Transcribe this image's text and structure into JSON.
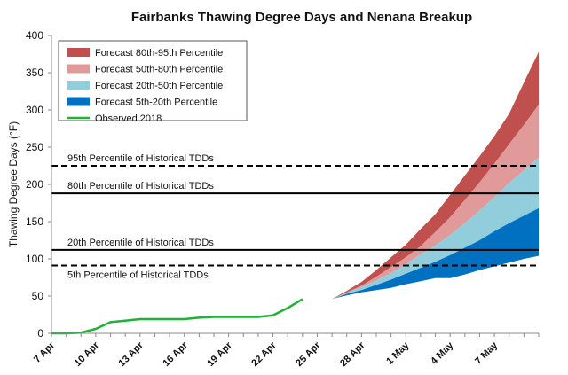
{
  "chart_data": {
    "type": "area",
    "title": "Fairbanks Thawing Degree Days and Nenana Breakup",
    "xlabel": "",
    "ylabel": "Thawing Degree Days (°F)",
    "ylim": [
      0,
      400
    ],
    "yticks": [
      "0",
      "50",
      "100",
      "150",
      "200",
      "250",
      "300",
      "350",
      "400"
    ],
    "xlim": [
      "2018-04-07",
      "2018-05-10"
    ],
    "xticks": [
      "7 Apr",
      "10 Apr",
      "13 Apr",
      "16 Apr",
      "19 Apr",
      "22 Apr",
      "25 Apr",
      "28 Apr",
      "1 May",
      "4 May",
      "7 May"
    ],
    "x": [
      "2018-04-07",
      "2018-04-08",
      "2018-04-09",
      "2018-04-10",
      "2018-04-11",
      "2018-04-12",
      "2018-04-13",
      "2018-04-14",
      "2018-04-15",
      "2018-04-16",
      "2018-04-17",
      "2018-04-18",
      "2018-04-19",
      "2018-04-20",
      "2018-04-21",
      "2018-04-22",
      "2018-04-23",
      "2018-04-24",
      "2018-04-25",
      "2018-04-26",
      "2018-04-27",
      "2018-04-28",
      "2018-04-29",
      "2018-04-30",
      "2018-05-01",
      "2018-05-02",
      "2018-05-03",
      "2018-05-04",
      "2018-05-05",
      "2018-05-06",
      "2018-05-07",
      "2018-05-08",
      "2018-05-09",
      "2018-05-10"
    ],
    "observed": {
      "name": "Observed 2018",
      "color": "#1fb236",
      "values": [
        0,
        0,
        1,
        6,
        15,
        17,
        19,
        19,
        19,
        19,
        21,
        22,
        22,
        22,
        22,
        24,
        34,
        46
      ]
    },
    "forecast_boundaries": {
      "p5": [
        46,
        51,
        55,
        58,
        61,
        66,
        70,
        74,
        74,
        79,
        85,
        90,
        95,
        100,
        104
      ],
      "p20": [
        46,
        53,
        58,
        65,
        72,
        80,
        88,
        96,
        105,
        115,
        125,
        137,
        148,
        158,
        168
      ],
      "p50": [
        46,
        54,
        62,
        71,
        81,
        93,
        106,
        118,
        132,
        148,
        165,
        183,
        202,
        219,
        236
      ],
      "p80": [
        46,
        55,
        64,
        76,
        89,
        102,
        117,
        136,
        156,
        179,
        203,
        228,
        254,
        280,
        307
      ],
      "p95": [
        46,
        57,
        69,
        85,
        102,
        119,
        140,
        160,
        186,
        212,
        238,
        265,
        295,
        337,
        378
      ]
    },
    "series": [
      {
        "name": "Forecast 80th-95th Percentile",
        "color": "#c0504d"
      },
      {
        "name": "Forecast 50th-80th Percentile",
        "color": "#e09a9a"
      },
      {
        "name": "Forecast 20th-50th Percentile",
        "color": "#92cddc"
      },
      {
        "name": "Forecast 5th-20th Percentile",
        "color": "#0070c0"
      }
    ],
    "reference_lines": [
      {
        "label": "95th Percentile of Historical TDDs",
        "value": 225,
        "style": "dashed"
      },
      {
        "label": "80th Percentile of Historical TDDs",
        "value": 188,
        "style": "solid"
      },
      {
        "label": "20th Percentile of Historical TDDs",
        "value": 112,
        "style": "solid"
      },
      {
        "label": "5th Percentile of Historical TDDs",
        "value": 91,
        "style": "dashed"
      }
    ],
    "legend_placement": "top-left",
    "grid": false
  }
}
